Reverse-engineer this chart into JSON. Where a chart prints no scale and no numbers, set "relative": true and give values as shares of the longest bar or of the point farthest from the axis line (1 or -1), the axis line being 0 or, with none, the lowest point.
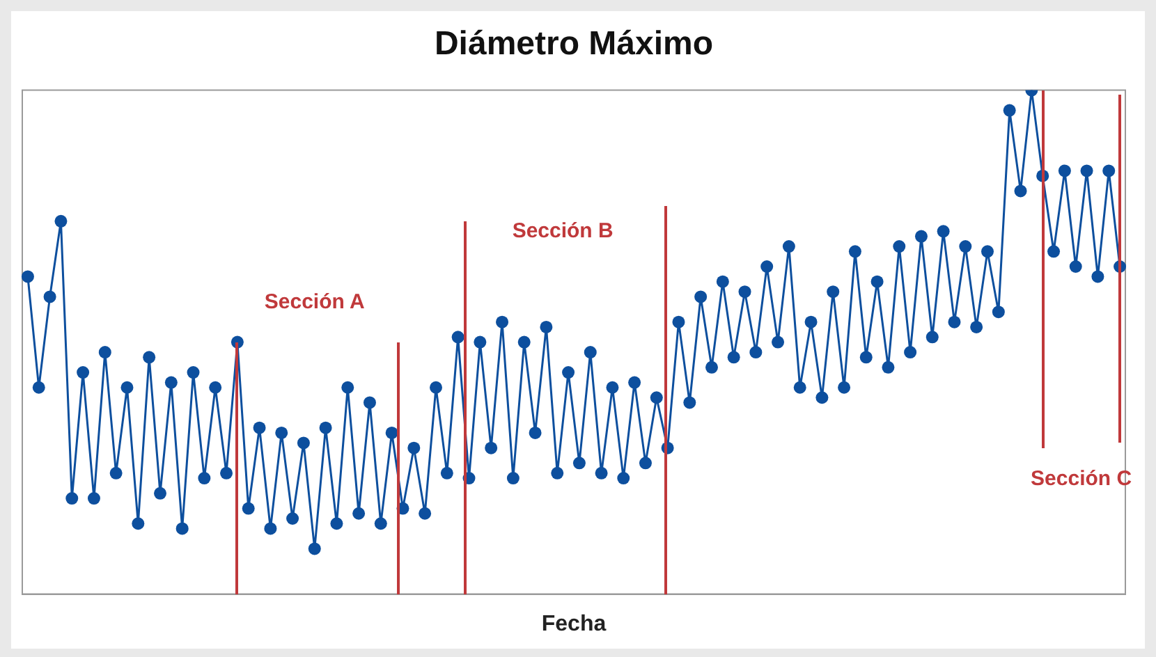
{
  "chart_data": {
    "type": "line",
    "title": "Diámetro Máximo",
    "xlabel": "Fecha",
    "relative": true,
    "tick_labels": false,
    "legend": false,
    "marker": "circle",
    "line_style": "solid",
    "categories": [
      null,
      null,
      null,
      null,
      null,
      null,
      null,
      null,
      null,
      null,
      null,
      null,
      null,
      null,
      null,
      null,
      null,
      null,
      null,
      null,
      null,
      null,
      null,
      null,
      null,
      null,
      null,
      null,
      null,
      null,
      null,
      null,
      null,
      null,
      null,
      null,
      null,
      null,
      null,
      null,
      null,
      null,
      null,
      null,
      null,
      null,
      null,
      null,
      null,
      null,
      null,
      null,
      null,
      null,
      null,
      null,
      null,
      null,
      null,
      null,
      null,
      null,
      null,
      null,
      null,
      null,
      null,
      null,
      null,
      null,
      null,
      null,
      null,
      null,
      null,
      null,
      null,
      null,
      null,
      null,
      null,
      null,
      null,
      null,
      null,
      null,
      null,
      null,
      null,
      null,
      null,
      null,
      null,
      null,
      null,
      null,
      null,
      null,
      null,
      null
    ],
    "series": [
      {
        "color": "#0d4f9e",
        "values": [
          0.63,
          0.41,
          0.59,
          0.74,
          0.19,
          0.44,
          0.19,
          0.48,
          0.24,
          0.41,
          0.14,
          0.47,
          0.2,
          0.42,
          0.13,
          0.44,
          0.23,
          0.41,
          0.24,
          0.5,
          0.17,
          0.33,
          0.13,
          0.32,
          0.15,
          0.3,
          0.09,
          0.33,
          0.14,
          0.41,
          0.16,
          0.38,
          0.14,
          0.32,
          0.17,
          0.29,
          0.16,
          0.41,
          0.24,
          0.51,
          0.23,
          0.5,
          0.29,
          0.54,
          0.23,
          0.5,
          0.32,
          0.53,
          0.24,
          0.44,
          0.26,
          0.48,
          0.24,
          0.41,
          0.23,
          0.42,
          0.26,
          0.39,
          0.29,
          0.54,
          0.38,
          0.59,
          0.45,
          0.62,
          0.47,
          0.6,
          0.48,
          0.65,
          0.5,
          0.69,
          0.41,
          0.54,
          0.39,
          0.6,
          0.41,
          0.68,
          0.47,
          0.62,
          0.45,
          0.69,
          0.48,
          0.71,
          0.51,
          0.72,
          0.54,
          0.69,
          0.53,
          0.68,
          0.56,
          0.96,
          0.8,
          1,
          0.83,
          0.68,
          0.84,
          0.65,
          0.84,
          0.63,
          0.84,
          0.65
        ]
      }
    ],
    "annotations": [
      "Sección A",
      "Sección B",
      "Sección C"
    ]
  }
}
